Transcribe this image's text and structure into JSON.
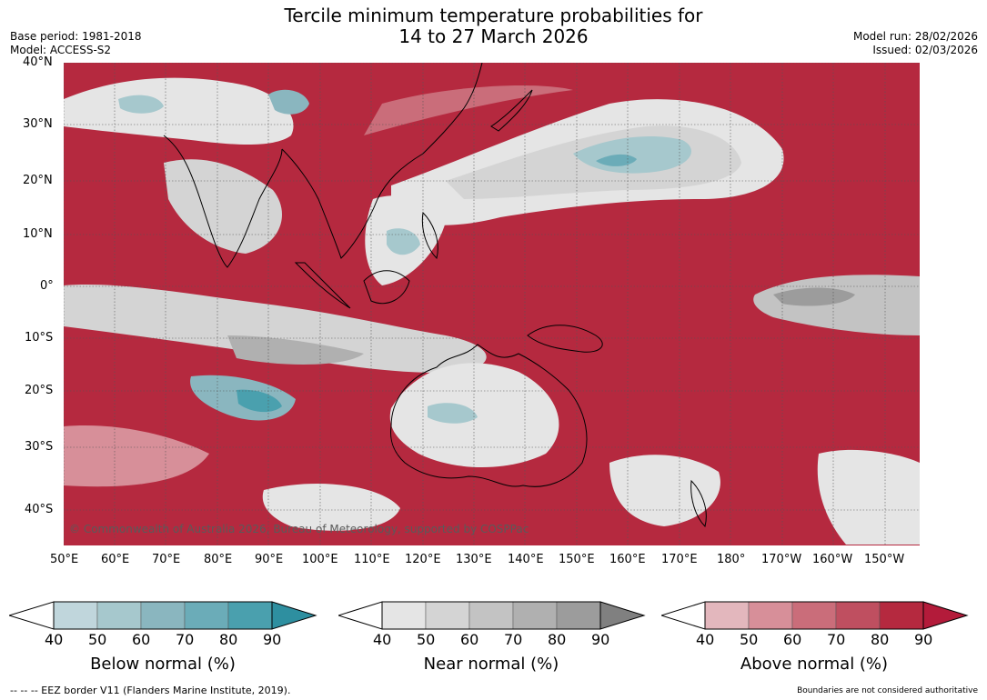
{
  "title": {
    "line1": "Tercile minimum temperature probabilities for",
    "line2": "14 to 27 March 2026"
  },
  "meta": {
    "base_period": "Base period: 1981-2018",
    "model": "Model: ACCESS-S2",
    "model_run": "Model run: 28/02/2026",
    "issued": "Issued: 02/03/2026"
  },
  "map": {
    "lat_labels": [
      "40°N",
      "30°N",
      "20°N",
      "10°N",
      "0°",
      "10°S",
      "20°S",
      "30°S",
      "40°S"
    ],
    "lon_labels": [
      "50°E",
      "60°E",
      "70°E",
      "80°E",
      "90°E",
      "100°E",
      "110°E",
      "120°E",
      "130°E",
      "140°E",
      "150°E",
      "160°E",
      "170°E",
      "180°",
      "170°W",
      "160°W",
      "150°W"
    ],
    "copyright": "© Commonwealth of Australia 2026, Bureau of Meteorology, supported by COSPPac",
    "colors": {
      "above": [
        "#e3b7bd",
        "#d78f99",
        "#ca6d7a",
        "#bf4f60",
        "#b5293f",
        "#b31b3a"
      ],
      "near": [
        "#e5e5e5",
        "#d4d4d4",
        "#c3c3c3",
        "#b0b0b0",
        "#9c9c9c",
        "#808080"
      ],
      "below": [
        "#c0d6dc",
        "#a6c8cd",
        "#8ab6bf",
        "#6bacb8",
        "#4aa0ae",
        "#2e8fa0"
      ]
    }
  },
  "colorbars": {
    "ticks": [
      "40",
      "50",
      "60",
      "70",
      "80",
      "90"
    ],
    "below_title": "Below normal (%)",
    "near_title": "Near normal (%)",
    "above_title": "Above normal (%)"
  },
  "footer": {
    "eez": "--  --  -- EEZ border V11 (Flanders Marine Institute, 2019).",
    "boundaries": "Boundaries are not considered authoritative"
  }
}
